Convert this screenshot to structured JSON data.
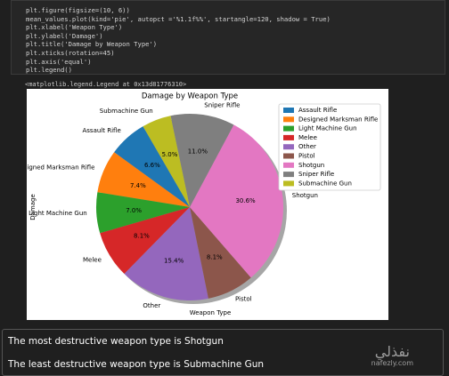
{
  "code_lines": [
    "plt.figure(figsize=(10, 6))",
    "mean_values.plot(kind='pie', autopct ='%1.1f%%', startangle=120, shadow = True)",
    "plt.xlabel('Weapon Type')",
    "plt.ylabel('Damage')",
    "plt.title('Damage by Weapon Type')",
    "plt.xticks(rotation=45)",
    "plt.axis('equal')",
    "plt.legend()"
  ],
  "output_text": "<matplotlib.legend.Legend at 0x13d81776310>",
  "chart_data": {
    "type": "pie",
    "title": "Damage by Weapon Type",
    "xlabel": "Weapon Type",
    "ylabel": "Damage",
    "categories": [
      "Assault Rifle",
      "Designed Marksman Rifle",
      "Light Machine Gun",
      "Melee",
      "Other",
      "Pistol",
      "Shotgun",
      "Sniper Rifle",
      "Submachine Gun"
    ],
    "values": [
      6.6,
      7.4,
      7.0,
      8.1,
      15.4,
      8.1,
      30.6,
      11.0,
      5.0
    ],
    "value_labels": [
      "6.6%",
      "7.4%",
      "7.0%",
      "8.1%",
      "15.4%",
      "8.1%",
      "30.6%",
      "11.0%",
      "5.0%"
    ],
    "colors": [
      "#1f77b4",
      "#ff7f0e",
      "#2ca02c",
      "#d62728",
      "#9467bd",
      "#8c564b",
      "#e377c2",
      "#7f7f7f",
      "#bcbd22"
    ],
    "startangle": 120,
    "shadow": true,
    "legend": "upper right"
  },
  "result_lines": [
    "The most destructive weapon type is Shotgun",
    "The least destructive weapon type is Submachine Gun"
  ],
  "watermark": {
    "arabic": "نفذلي",
    "site": "nafezly.com"
  }
}
